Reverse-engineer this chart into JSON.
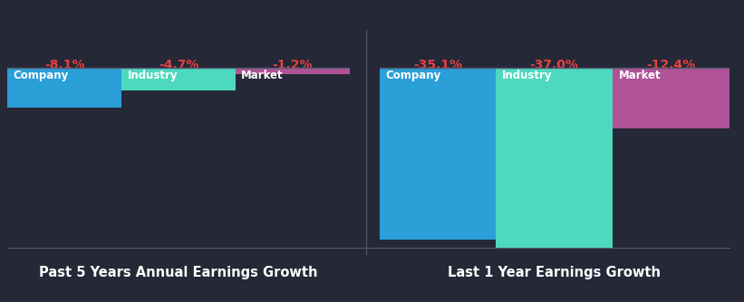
{
  "background_color": "#252837",
  "left_title": "Past 5 Years Annual Earnings Growth",
  "right_title": "Last 1 Year Earnings Growth",
  "left_bars": [
    {
      "label": "Company",
      "value": -8.1,
      "color": "#2a9fd8"
    },
    {
      "label": "Industry",
      "value": -4.7,
      "color": "#4dd9c0"
    },
    {
      "label": "Market",
      "value": -1.2,
      "color": "#b05298"
    }
  ],
  "right_bars": [
    {
      "label": "Company",
      "value": -35.1,
      "color": "#2a9fd8"
    },
    {
      "label": "Industry",
      "value": -37.0,
      "color": "#4dd9c0"
    },
    {
      "label": "Market",
      "value": -12.4,
      "color": "#b05298"
    }
  ],
  "label_color": "#ffffff",
  "value_color": "#e84040",
  "title_color": "#ffffff",
  "title_fontsize": 10.5,
  "label_fontsize": 8.5,
  "value_fontsize": 10,
  "divider_color": "#555a72",
  "ylim_min": -38,
  "ylim_max": 4
}
